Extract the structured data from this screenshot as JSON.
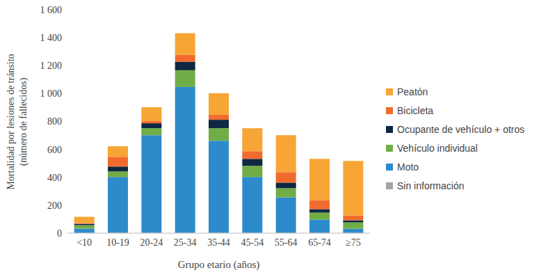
{
  "chart_data": {
    "type": "bar",
    "stacked": true,
    "grid": false,
    "legend": "right",
    "xlabel": "Grupo etario (años)",
    "ylabel": "Mortalidad por lesiones de tránsito (número de fallecidos)",
    "categories": [
      "<10",
      "10-19",
      "20-24",
      "25-34",
      "35-44",
      "45-54",
      "55-64",
      "65-74",
      "≥75"
    ],
    "ylim": [
      0,
      1600
    ],
    "yticks": [
      0,
      200,
      400,
      600,
      800,
      {
        "value": 1000,
        "label": "1 000"
      },
      {
        "value": 1200,
        "label": "1 200"
      },
      {
        "value": 1400,
        "label": "1 400"
      },
      {
        "value": 1600,
        "label": "1 600"
      }
    ],
    "series": [
      {
        "name": "Sin información",
        "color": "#a5a5a5",
        "values": [
          2,
          2,
          2,
          2,
          2,
          2,
          2,
          2,
          2
        ]
      },
      {
        "name": "Moto",
        "color": "#2e8bcb",
        "values": [
          30,
          400,
          700,
          1045,
          660,
          400,
          255,
          95,
          30
        ]
      },
      {
        "name": "Vehículo individual",
        "color": "#70ad47",
        "values": [
          25,
          40,
          50,
          120,
          90,
          80,
          65,
          50,
          45
        ]
      },
      {
        "name": "Ocupante de vehículo + otros",
        "color": "#0e2841",
        "values": [
          10,
          35,
          35,
          60,
          60,
          50,
          40,
          25,
          15
        ]
      },
      {
        "name": "Bicicleta",
        "color": "#f26b2e",
        "values": [
          5,
          70,
          15,
          50,
          35,
          55,
          75,
          65,
          35
        ]
      },
      {
        "name": "Peatón",
        "color": "#f7a535",
        "values": [
          45,
          75,
          100,
          155,
          155,
          165,
          265,
          295,
          390
        ]
      }
    ]
  }
}
